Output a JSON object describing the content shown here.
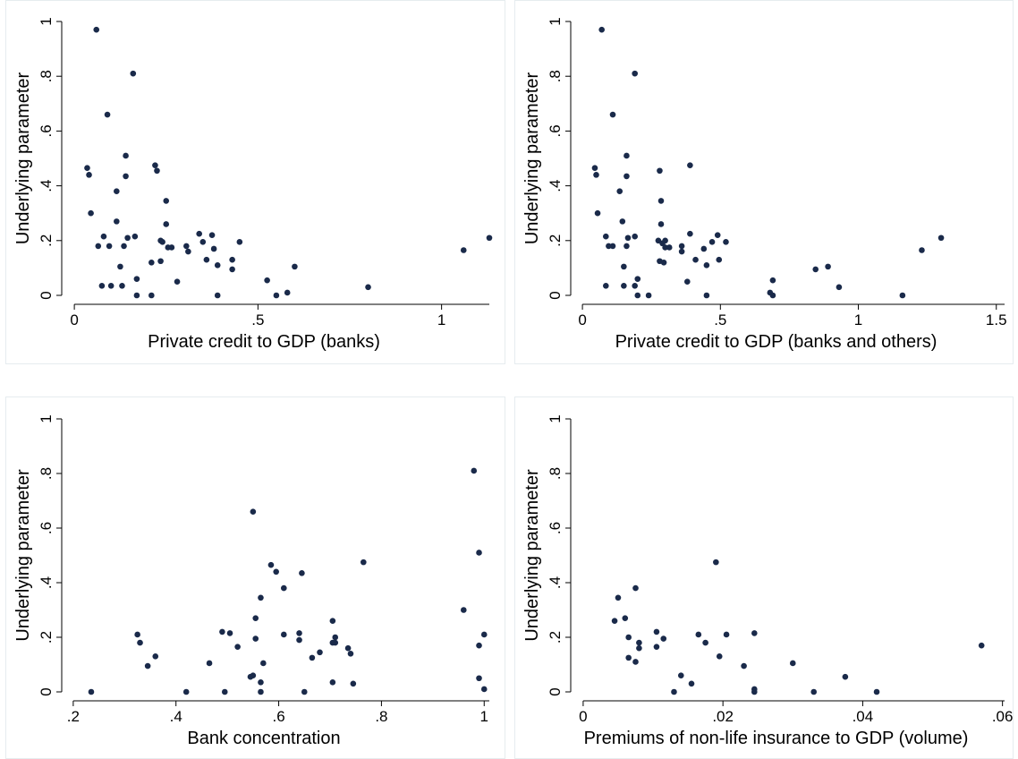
{
  "colors": {
    "marker": "#1a2a4a",
    "background": "#ffffff",
    "frame": "#e6ecef"
  },
  "chart_data": [
    {
      "type": "scatter",
      "xlabel": "Private credit to GDP (banks)",
      "ylabel": "Underlying parameter",
      "xlim": [
        -0.01,
        1.13
      ],
      "ylim": [
        0,
        1
      ],
      "xticks": [
        0,
        0.5,
        1
      ],
      "xtick_labels": [
        "0",
        ".5",
        "1"
      ],
      "yticks": [
        0,
        0.2,
        0.4,
        0.6,
        0.8,
        1
      ],
      "ytick_labels": [
        "0",
        ".2",
        ".4",
        ".6",
        ".8",
        "1"
      ],
      "grid": false,
      "points": [
        [
          0.06,
          0.97
        ],
        [
          0.16,
          0.81
        ],
        [
          0.09,
          0.66
        ],
        [
          0.14,
          0.51
        ],
        [
          0.22,
          0.475
        ],
        [
          0.035,
          0.465
        ],
        [
          0.225,
          0.455
        ],
        [
          0.04,
          0.44
        ],
        [
          0.14,
          0.435
        ],
        [
          0.115,
          0.38
        ],
        [
          0.25,
          0.345
        ],
        [
          0.045,
          0.3
        ],
        [
          0.115,
          0.27
        ],
        [
          0.25,
          0.26
        ],
        [
          0.34,
          0.225
        ],
        [
          0.165,
          0.215
        ],
        [
          0.08,
          0.215
        ],
        [
          0.145,
          0.21
        ],
        [
          0.375,
          0.22
        ],
        [
          0.235,
          0.2
        ],
        [
          0.24,
          0.195
        ],
        [
          0.45,
          0.195
        ],
        [
          0.35,
          0.195
        ],
        [
          0.305,
          0.18
        ],
        [
          0.065,
          0.18
        ],
        [
          0.095,
          0.18
        ],
        [
          0.135,
          0.18
        ],
        [
          0.265,
          0.175
        ],
        [
          0.255,
          0.175
        ],
        [
          0.38,
          0.17
        ],
        [
          0.31,
          0.16
        ],
        [
          0.36,
          0.13
        ],
        [
          0.235,
          0.125
        ],
        [
          0.43,
          0.13
        ],
        [
          0.21,
          0.12
        ],
        [
          0.39,
          0.11
        ],
        [
          0.125,
          0.105
        ],
        [
          0.6,
          0.105
        ],
        [
          0.43,
          0.095
        ],
        [
          0.17,
          0.06
        ],
        [
          0.28,
          0.05
        ],
        [
          0.525,
          0.055
        ],
        [
          0.075,
          0.035
        ],
        [
          0.1,
          0.035
        ],
        [
          0.13,
          0.035
        ],
        [
          0.8,
          0.03
        ],
        [
          0.58,
          0.01
        ],
        [
          0.17,
          0
        ],
        [
          0.21,
          0
        ],
        [
          0.39,
          0
        ],
        [
          0.55,
          0
        ],
        [
          1.06,
          0.165
        ],
        [
          1.13,
          0.21
        ]
      ]
    },
    {
      "type": "scatter",
      "xlabel": "Private credit to GDP (banks and others)",
      "ylabel": "Underlying parameter",
      "xlim": [
        -0.01,
        1.53
      ],
      "ylim": [
        0,
        1
      ],
      "xticks": [
        0,
        0.5,
        1,
        1.5
      ],
      "xtick_labels": [
        "0",
        ".5",
        "1",
        "1.5"
      ],
      "yticks": [
        0,
        0.2,
        0.4,
        0.6,
        0.8,
        1
      ],
      "ytick_labels": [
        "0",
        ".2",
        ".4",
        ".6",
        ".8",
        "1"
      ],
      "grid": false,
      "points": [
        [
          0.07,
          0.97
        ],
        [
          0.19,
          0.81
        ],
        [
          0.11,
          0.66
        ],
        [
          0.16,
          0.51
        ],
        [
          0.39,
          0.475
        ],
        [
          0.045,
          0.465
        ],
        [
          0.28,
          0.455
        ],
        [
          0.05,
          0.44
        ],
        [
          0.16,
          0.435
        ],
        [
          0.135,
          0.38
        ],
        [
          0.285,
          0.345
        ],
        [
          0.055,
          0.3
        ],
        [
          0.145,
          0.27
        ],
        [
          0.285,
          0.26
        ],
        [
          0.39,
          0.225
        ],
        [
          0.49,
          0.22
        ],
        [
          0.19,
          0.215
        ],
        [
          0.085,
          0.215
        ],
        [
          0.165,
          0.21
        ],
        [
          0.3,
          0.2
        ],
        [
          0.275,
          0.2
        ],
        [
          0.47,
          0.195
        ],
        [
          0.52,
          0.195
        ],
        [
          0.29,
          0.19
        ],
        [
          0.36,
          0.18
        ],
        [
          0.095,
          0.18
        ],
        [
          0.11,
          0.18
        ],
        [
          0.16,
          0.18
        ],
        [
          0.315,
          0.175
        ],
        [
          0.3,
          0.175
        ],
        [
          0.44,
          0.17
        ],
        [
          0.36,
          0.16
        ],
        [
          0.41,
          0.13
        ],
        [
          0.28,
          0.125
        ],
        [
          0.495,
          0.13
        ],
        [
          0.295,
          0.12
        ],
        [
          0.45,
          0.11
        ],
        [
          0.15,
          0.105
        ],
        [
          0.89,
          0.105
        ],
        [
          0.845,
          0.095
        ],
        [
          0.2,
          0.06
        ],
        [
          0.69,
          0.055
        ],
        [
          0.38,
          0.05
        ],
        [
          0.085,
          0.035
        ],
        [
          0.15,
          0.035
        ],
        [
          0.19,
          0.035
        ],
        [
          0.93,
          0.03
        ],
        [
          0.68,
          0.01
        ],
        [
          0.2,
          0
        ],
        [
          0.24,
          0
        ],
        [
          0.45,
          0
        ],
        [
          0.69,
          0
        ],
        [
          1.16,
          0
        ],
        [
          1.23,
          0.165
        ],
        [
          1.3,
          0.21
        ]
      ]
    },
    {
      "type": "scatter",
      "xlabel": "Bank concentration",
      "ylabel": "Underlying parameter",
      "xlim": [
        0.195,
        1.01
      ],
      "ylim": [
        0,
        1
      ],
      "xticks": [
        0.2,
        0.4,
        0.6,
        0.8,
        1
      ],
      "xtick_labels": [
        ".2",
        ".4",
        ".6",
        ".8",
        "1"
      ],
      "yticks": [
        0,
        0.2,
        0.4,
        0.6,
        0.8,
        1
      ],
      "ytick_labels": [
        "0",
        ".2",
        ".4",
        ".6",
        ".8",
        "1"
      ],
      "grid": false,
      "points": [
        [
          0.98,
          0.81
        ],
        [
          0.55,
          0.66
        ],
        [
          0.99,
          0.51
        ],
        [
          0.765,
          0.475
        ],
        [
          0.585,
          0.465
        ],
        [
          0.595,
          0.44
        ],
        [
          0.645,
          0.435
        ],
        [
          0.61,
          0.38
        ],
        [
          0.565,
          0.345
        ],
        [
          0.96,
          0.3
        ],
        [
          0.555,
          0.27
        ],
        [
          0.705,
          0.26
        ],
        [
          0.325,
          0.21
        ],
        [
          0.49,
          0.22
        ],
        [
          0.505,
          0.215
        ],
        [
          0.61,
          0.21
        ],
        [
          0.64,
          0.215
        ],
        [
          1.0,
          0.21
        ],
        [
          0.71,
          0.2
        ],
        [
          0.555,
          0.195
        ],
        [
          0.64,
          0.19
        ],
        [
          0.33,
          0.18
        ],
        [
          0.705,
          0.18
        ],
        [
          0.71,
          0.18
        ],
        [
          0.52,
          0.165
        ],
        [
          0.735,
          0.16
        ],
        [
          0.99,
          0.17
        ],
        [
          0.68,
          0.145
        ],
        [
          0.74,
          0.14
        ],
        [
          0.36,
          0.13
        ],
        [
          0.665,
          0.125
        ],
        [
          0.345,
          0.095
        ],
        [
          0.465,
          0.105
        ],
        [
          0.57,
          0.105
        ],
        [
          0.545,
          0.055
        ],
        [
          0.55,
          0.06
        ],
        [
          0.565,
          0.035
        ],
        [
          0.705,
          0.035
        ],
        [
          0.745,
          0.03
        ],
        [
          0.99,
          0.05
        ],
        [
          1.0,
          0.01
        ],
        [
          0.235,
          0
        ],
        [
          0.42,
          0
        ],
        [
          0.495,
          0
        ],
        [
          0.565,
          0
        ],
        [
          0.65,
          0
        ]
      ]
    },
    {
      "type": "scatter",
      "xlabel": "Premiums of non-life insurance to GDP (volume)",
      "ylabel": "Underlying parameter",
      "xlim": [
        -0.0005,
        0.0603
      ],
      "ylim": [
        0,
        1
      ],
      "xticks": [
        0,
        0.02,
        0.04,
        0.06
      ],
      "xtick_labels": [
        "0",
        ".02",
        ".04",
        ".06"
      ],
      "yticks": [
        0,
        0.2,
        0.4,
        0.6,
        0.8,
        1
      ],
      "ytick_labels": [
        "0",
        ".2",
        ".4",
        ".6",
        ".8",
        "1"
      ],
      "grid": false,
      "points": [
        [
          0.019,
          0.475
        ],
        [
          0.0075,
          0.38
        ],
        [
          0.005,
          0.345
        ],
        [
          0.006,
          0.27
        ],
        [
          0.0045,
          0.26
        ],
        [
          0.0105,
          0.22
        ],
        [
          0.0245,
          0.215
        ],
        [
          0.0165,
          0.21
        ],
        [
          0.0205,
          0.21
        ],
        [
          0.0065,
          0.2
        ],
        [
          0.0115,
          0.195
        ],
        [
          0.008,
          0.18
        ],
        [
          0.0175,
          0.18
        ],
        [
          0.057,
          0.17
        ],
        [
          0.0105,
          0.165
        ],
        [
          0.008,
          0.16
        ],
        [
          0.0195,
          0.13
        ],
        [
          0.0065,
          0.125
        ],
        [
          0.0075,
          0.11
        ],
        [
          0.03,
          0.105
        ],
        [
          0.023,
          0.095
        ],
        [
          0.014,
          0.06
        ],
        [
          0.0375,
          0.055
        ],
        [
          0.0155,
          0.03
        ],
        [
          0.0245,
          0.01
        ],
        [
          0.013,
          0
        ],
        [
          0.0245,
          0
        ],
        [
          0.033,
          0
        ],
        [
          0.042,
          0
        ]
      ]
    }
  ]
}
